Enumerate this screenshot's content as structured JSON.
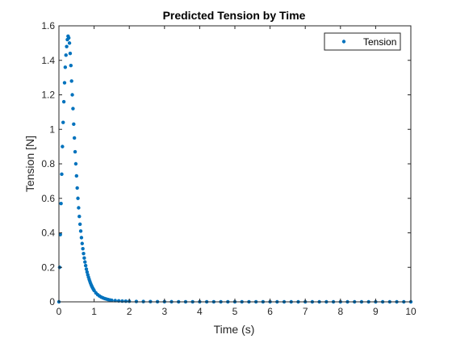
{
  "chart_data": {
    "type": "scatter",
    "title": "Predicted Tension by Time",
    "xlabel": "Time (s)",
    "ylabel": "Tension [N]",
    "xlim": [
      0,
      10
    ],
    "ylim": [
      0,
      1.6
    ],
    "x_ticks": [
      "0",
      "1",
      "2",
      "3",
      "4",
      "5",
      "6",
      "7",
      "8",
      "9",
      "10"
    ],
    "y_ticks": [
      "0",
      "0.2",
      "0.4",
      "0.6",
      "0.8",
      "1",
      "1.2",
      "1.4",
      "1.6"
    ],
    "grid": false,
    "legend_position": "top-right",
    "marker_color": "#0072BD",
    "series": [
      {
        "name": "Tension",
        "x": [
          0.0,
          0.02,
          0.04,
          0.06,
          0.08,
          0.1,
          0.12,
          0.14,
          0.16,
          0.18,
          0.2,
          0.22,
          0.24,
          0.26,
          0.28,
          0.3,
          0.32,
          0.34,
          0.36,
          0.38,
          0.4,
          0.42,
          0.44,
          0.46,
          0.48,
          0.5,
          0.52,
          0.54,
          0.56,
          0.58,
          0.6,
          0.62,
          0.64,
          0.66,
          0.68,
          0.7,
          0.72,
          0.74,
          0.76,
          0.78,
          0.8,
          0.82,
          0.84,
          0.86,
          0.88,
          0.9,
          0.92,
          0.94,
          0.96,
          0.98,
          1.0,
          1.05,
          1.1,
          1.15,
          1.2,
          1.25,
          1.3,
          1.35,
          1.4,
          1.45,
          1.5,
          1.6,
          1.7,
          1.8,
          1.9,
          2.0,
          2.2,
          2.4,
          2.6,
          2.8,
          3.0,
          3.2,
          3.4,
          3.6,
          3.8,
          4.0,
          4.2,
          4.4,
          4.6,
          4.8,
          5.0,
          5.2,
          5.4,
          5.6,
          5.8,
          6.0,
          6.2,
          6.4,
          6.6,
          6.8,
          7.0,
          7.2,
          7.4,
          7.6,
          7.8,
          8.0,
          8.2,
          8.4,
          8.6,
          8.8,
          9.0,
          9.2,
          9.4,
          9.6,
          9.8,
          10.0
        ],
        "y": [
          0.0,
          0.2,
          0.39,
          0.57,
          0.74,
          0.9,
          1.04,
          1.16,
          1.27,
          1.36,
          1.43,
          1.48,
          1.52,
          1.54,
          1.53,
          1.5,
          1.44,
          1.37,
          1.28,
          1.2,
          1.12,
          1.03,
          0.95,
          0.87,
          0.8,
          0.73,
          0.66,
          0.6,
          0.545,
          0.495,
          0.45,
          0.41,
          0.372,
          0.338,
          0.308,
          0.28,
          0.254,
          0.231,
          0.21,
          0.19,
          0.173,
          0.157,
          0.143,
          0.13,
          0.118,
          0.107,
          0.097,
          0.088,
          0.08,
          0.073,
          0.066,
          0.052,
          0.042,
          0.034,
          0.028,
          0.023,
          0.019,
          0.016,
          0.013,
          0.011,
          0.009,
          0.007,
          0.0055,
          0.0045,
          0.0037,
          0.003,
          0.0022,
          0.0017,
          0.0013,
          0.001,
          0.0008,
          0.0006,
          0.0005,
          0.0004,
          0.0003,
          0.0003,
          0.0002,
          0.0002,
          0.0002,
          0.0001,
          0.0001,
          0.0001,
          0.0001,
          0.0001,
          0.0001,
          0.0001,
          0.0,
          0.0,
          0.0,
          0.0,
          0.0,
          0.0,
          0.0,
          0.0,
          0.0,
          0.0,
          0.0,
          0.0,
          0.0,
          0.0,
          0.0,
          0.0,
          0.0,
          0.0,
          0.0,
          0.0
        ]
      }
    ]
  }
}
